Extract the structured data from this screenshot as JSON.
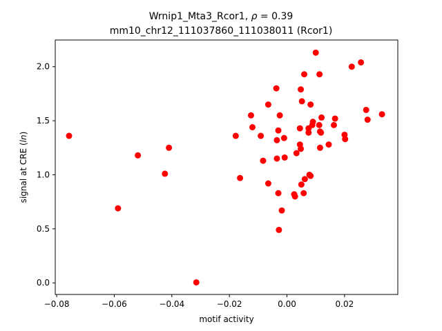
{
  "chart_data": {
    "type": "scatter",
    "title_line1": "Wrnip1_Mta3_Rcor1, ",
    "title_rho": "ρ",
    "title_rho_value": " = 0.39",
    "title_line2": "mm10_chr12_111037860_111038011 (Rcor1)",
    "xlabel": "motif activity",
    "ylabel_prefix": "signal at CRE (",
    "ylabel_italic": "ln",
    "ylabel_suffix": ")",
    "xlim": [
      -0.0805,
      0.0385
    ],
    "ylim": [
      -0.107,
      2.247
    ],
    "xticks": [
      -0.08,
      -0.06,
      -0.04,
      -0.02,
      0.0,
      0.02
    ],
    "xtick_labels": [
      "−0.08",
      "−0.06",
      "−0.04",
      "−0.02",
      "0.00",
      "0.02"
    ],
    "yticks": [
      0.0,
      0.5,
      1.0,
      1.5,
      2.0
    ],
    "ytick_labels": [
      "0.0",
      "0.5",
      "1.0",
      "1.5",
      "2.0"
    ],
    "marker_color": "#ff0000",
    "grid": false,
    "points": [
      {
        "x": -0.0757,
        "y": 1.36
      },
      {
        "x": -0.0587,
        "y": 0.69
      },
      {
        "x": -0.0518,
        "y": 1.18
      },
      {
        "x": -0.0424,
        "y": 1.01
      },
      {
        "x": -0.041,
        "y": 1.25
      },
      {
        "x": -0.0315,
        "y": 0.005
      },
      {
        "x": -0.0178,
        "y": 1.36
      },
      {
        "x": -0.0163,
        "y": 0.97
      },
      {
        "x": -0.0125,
        "y": 1.55
      },
      {
        "x": -0.012,
        "y": 1.44
      },
      {
        "x": -0.0091,
        "y": 1.36
      },
      {
        "x": -0.0083,
        "y": 1.13
      },
      {
        "x": -0.0065,
        "y": 1.65
      },
      {
        "x": -0.0065,
        "y": 0.92
      },
      {
        "x": -0.0037,
        "y": 1.8
      },
      {
        "x": -0.0035,
        "y": 1.32
      },
      {
        "x": -0.0035,
        "y": 1.15
      },
      {
        "x": -0.003,
        "y": 1.41
      },
      {
        "x": -0.003,
        "y": 0.83
      },
      {
        "x": -0.0028,
        "y": 0.49
      },
      {
        "x": -0.0025,
        "y": 1.55
      },
      {
        "x": -0.0018,
        "y": 0.67
      },
      {
        "x": -0.001,
        "y": 1.34
      },
      {
        "x": -0.0008,
        "y": 1.16
      },
      {
        "x": 0.0025,
        "y": 0.82
      },
      {
        "x": 0.0028,
        "y": 0.8
      },
      {
        "x": 0.0033,
        "y": 1.2
      },
      {
        "x": 0.0045,
        "y": 1.28
      },
      {
        "x": 0.0045,
        "y": 1.43
      },
      {
        "x": 0.0048,
        "y": 1.79
      },
      {
        "x": 0.0048,
        "y": 1.24
      },
      {
        "x": 0.005,
        "y": 0.91
      },
      {
        "x": 0.0052,
        "y": 1.68
      },
      {
        "x": 0.0058,
        "y": 0.83
      },
      {
        "x": 0.006,
        "y": 1.93
      },
      {
        "x": 0.0062,
        "y": 0.96
      },
      {
        "x": 0.0075,
        "y": 1.39
      },
      {
        "x": 0.0075,
        "y": 1.43
      },
      {
        "x": 0.0078,
        "y": 1.0
      },
      {
        "x": 0.0082,
        "y": 1.65
      },
      {
        "x": 0.0082,
        "y": 0.99
      },
      {
        "x": 0.0088,
        "y": 1.46
      },
      {
        "x": 0.009,
        "y": 1.49
      },
      {
        "x": 0.01,
        "y": 2.13
      },
      {
        "x": 0.0112,
        "y": 1.46
      },
      {
        "x": 0.0113,
        "y": 1.93
      },
      {
        "x": 0.0115,
        "y": 1.25
      },
      {
        "x": 0.0115,
        "y": 1.4
      },
      {
        "x": 0.0118,
        "y": 1.39
      },
      {
        "x": 0.012,
        "y": 1.53
      },
      {
        "x": 0.0145,
        "y": 1.28
      },
      {
        "x": 0.0163,
        "y": 1.46
      },
      {
        "x": 0.0167,
        "y": 1.52
      },
      {
        "x": 0.02,
        "y": 1.37
      },
      {
        "x": 0.0202,
        "y": 1.33
      },
      {
        "x": 0.0225,
        "y": 2.0
      },
      {
        "x": 0.0257,
        "y": 2.04
      },
      {
        "x": 0.0275,
        "y": 1.6
      },
      {
        "x": 0.028,
        "y": 1.51
      },
      {
        "x": 0.033,
        "y": 1.56
      }
    ]
  }
}
